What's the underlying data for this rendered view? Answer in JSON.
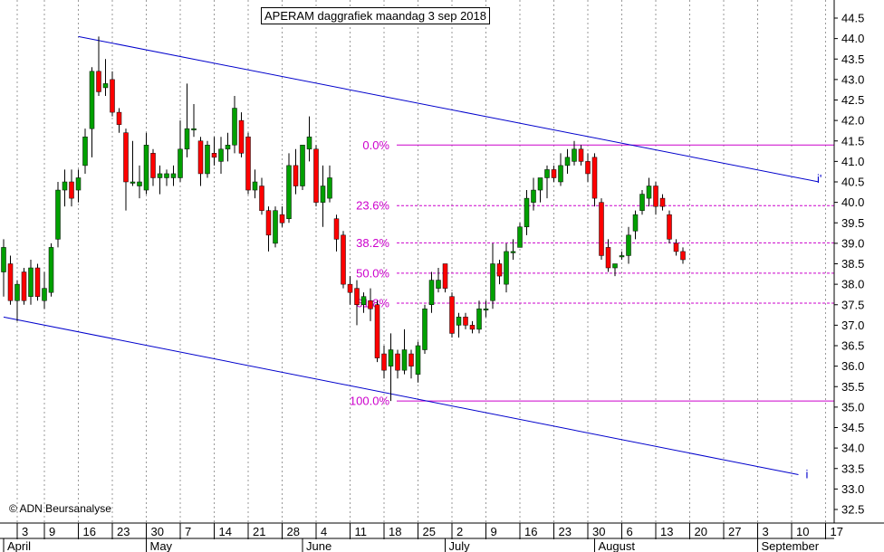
{
  "chart_data": {
    "type": "candlestick",
    "title": "APERAM daggrafiek maandag 3 sep 2018",
    "copyright": "© ADN Beursanalyse",
    "ylim": [
      32.25,
      44.75
    ],
    "y_ticks": [
      "32.5",
      "33.0",
      "33.5",
      "34.0",
      "34.5",
      "35.0",
      "35.5",
      "36.0",
      "36.5",
      "37.0",
      "37.5",
      "38.0",
      "38.5",
      "39.0",
      "39.5",
      "40.0",
      "40.5",
      "41.0",
      "41.5",
      "42.0",
      "42.5",
      "43.0",
      "43.5",
      "44.0",
      "44.5"
    ],
    "x_ticks": [
      {
        "label": "3",
        "i": 2
      },
      {
        "label": "9",
        "i": 6
      },
      {
        "label": "16",
        "i": 11
      },
      {
        "label": "23",
        "i": 16
      },
      {
        "label": "30",
        "i": 21
      },
      {
        "label": "7",
        "i": 26
      },
      {
        "label": "14",
        "i": 31
      },
      {
        "label": "21",
        "i": 36
      },
      {
        "label": "28",
        "i": 41
      },
      {
        "label": "4",
        "i": 46
      },
      {
        "label": "11",
        "i": 51
      },
      {
        "label": "18",
        "i": 56
      },
      {
        "label": "25",
        "i": 61
      },
      {
        "label": "2",
        "i": 66
      },
      {
        "label": "9",
        "i": 71
      },
      {
        "label": "16",
        "i": 76
      },
      {
        "label": "23",
        "i": 81
      },
      {
        "label": "30",
        "i": 86
      },
      {
        "label": "6",
        "i": 91
      },
      {
        "label": "13",
        "i": 96
      },
      {
        "label": "20",
        "i": 101
      },
      {
        "label": "27",
        "i": 106
      },
      {
        "label": "3",
        "i": 111
      },
      {
        "label": "10",
        "i": 116
      },
      {
        "label": "17",
        "i": 121
      }
    ],
    "months": [
      {
        "label": "April",
        "i": 0
      },
      {
        "label": "May",
        "i": 21
      },
      {
        "label": "June",
        "i": 44
      },
      {
        "label": "July",
        "i": 65
      },
      {
        "label": "August",
        "i": 87
      },
      {
        "label": "September",
        "i": 111
      }
    ],
    "fibonacci": {
      "high": 41.4,
      "low": 35.15,
      "levels": [
        {
          "label": "0.0%",
          "value": 41.4
        },
        {
          "label": "23.6%",
          "value": 39.92
        },
        {
          "label": "38.2%",
          "value": 39.01
        },
        {
          "label": "50.0%",
          "value": 38.27
        },
        {
          "label": "61.8%",
          "value": 37.54
        },
        {
          "label": "100.0%",
          "value": 35.15
        }
      ]
    },
    "channel": {
      "upper": {
        "from": {
          "i": 11,
          "v": 44.05
        },
        "to": {
          "i": 120,
          "v": 40.5
        },
        "label": "i'"
      },
      "lower": {
        "from": {
          "i": 0,
          "v": 37.2
        },
        "to": {
          "i": 117,
          "v": 33.35
        },
        "label": "i"
      }
    },
    "candles": [
      {
        "o": 38.3,
        "h": 39.1,
        "l": 37.7,
        "c": 38.9
      },
      {
        "o": 38.5,
        "h": 38.7,
        "l": 37.5,
        "c": 37.6
      },
      {
        "o": 37.6,
        "h": 38.1,
        "l": 37.1,
        "c": 38.0
      },
      {
        "o": 38.3,
        "h": 38.4,
        "l": 37.5,
        "c": 37.6
      },
      {
        "o": 37.7,
        "h": 38.6,
        "l": 37.5,
        "c": 38.4
      },
      {
        "o": 38.4,
        "h": 38.5,
        "l": 37.6,
        "c": 37.7
      },
      {
        "o": 37.6,
        "h": 38.3,
        "l": 37.4,
        "c": 37.9
      },
      {
        "o": 37.8,
        "h": 39.0,
        "l": 37.7,
        "c": 38.9
      },
      {
        "o": 39.1,
        "h": 40.5,
        "l": 38.9,
        "c": 40.3
      },
      {
        "o": 40.3,
        "h": 40.8,
        "l": 39.9,
        "c": 40.5
      },
      {
        "o": 40.5,
        "h": 40.8,
        "l": 39.9,
        "c": 40.1
      },
      {
        "o": 40.3,
        "h": 40.8,
        "l": 40.0,
        "c": 40.6
      },
      {
        "o": 40.9,
        "h": 41.8,
        "l": 40.7,
        "c": 41.6
      },
      {
        "o": 41.8,
        "h": 43.3,
        "l": 41.1,
        "c": 43.2
      },
      {
        "o": 43.2,
        "h": 44.05,
        "l": 42.6,
        "c": 42.7
      },
      {
        "o": 42.8,
        "h": 43.5,
        "l": 42.6,
        "c": 42.9
      },
      {
        "o": 43.0,
        "h": 43.2,
        "l": 42.1,
        "c": 42.2
      },
      {
        "o": 42.2,
        "h": 42.3,
        "l": 41.7,
        "c": 41.9
      },
      {
        "o": 41.7,
        "h": 41.8,
        "l": 39.8,
        "c": 40.5
      },
      {
        "o": 40.5,
        "h": 41.5,
        "l": 40.4,
        "c": 40.5
      },
      {
        "o": 40.4,
        "h": 40.9,
        "l": 40.1,
        "c": 40.5
      },
      {
        "o": 40.3,
        "h": 41.7,
        "l": 40.2,
        "c": 41.4
      },
      {
        "o": 41.2,
        "h": 41.3,
        "l": 40.4,
        "c": 40.6
      },
      {
        "o": 40.6,
        "h": 40.9,
        "l": 40.2,
        "c": 40.7
      },
      {
        "o": 40.6,
        "h": 40.8,
        "l": 40.4,
        "c": 40.7
      },
      {
        "o": 40.6,
        "h": 40.9,
        "l": 40.4,
        "c": 40.7
      },
      {
        "o": 40.6,
        "h": 42.0,
        "l": 40.5,
        "c": 41.3
      },
      {
        "o": 41.3,
        "h": 42.9,
        "l": 41.1,
        "c": 41.8
      },
      {
        "o": 41.8,
        "h": 42.4,
        "l": 41.6,
        "c": 41.8
      },
      {
        "o": 41.5,
        "h": 41.6,
        "l": 40.4,
        "c": 40.7
      },
      {
        "o": 40.7,
        "h": 41.5,
        "l": 40.6,
        "c": 41.4
      },
      {
        "o": 41.2,
        "h": 41.6,
        "l": 40.9,
        "c": 41.1
      },
      {
        "o": 41.0,
        "h": 41.6,
        "l": 40.7,
        "c": 41.3
      },
      {
        "o": 41.3,
        "h": 41.7,
        "l": 41.0,
        "c": 41.4
      },
      {
        "o": 41.4,
        "h": 42.6,
        "l": 41.2,
        "c": 42.3
      },
      {
        "o": 42.0,
        "h": 42.2,
        "l": 41.1,
        "c": 41.2
      },
      {
        "o": 41.6,
        "h": 41.7,
        "l": 40.2,
        "c": 40.3
      },
      {
        "o": 40.3,
        "h": 40.8,
        "l": 40.1,
        "c": 40.5
      },
      {
        "o": 40.4,
        "h": 40.6,
        "l": 39.7,
        "c": 39.8
      },
      {
        "o": 39.8,
        "h": 39.9,
        "l": 38.8,
        "c": 39.2
      },
      {
        "o": 39.0,
        "h": 39.9,
        "l": 38.9,
        "c": 39.8
      },
      {
        "o": 39.7,
        "h": 39.9,
        "l": 39.4,
        "c": 39.5
      },
      {
        "o": 39.6,
        "h": 41.2,
        "l": 39.5,
        "c": 40.9
      },
      {
        "o": 40.9,
        "h": 41.3,
        "l": 40.2,
        "c": 40.4
      },
      {
        "o": 40.4,
        "h": 41.4,
        "l": 40.3,
        "c": 41.4
      },
      {
        "o": 41.3,
        "h": 42.1,
        "l": 41.0,
        "c": 41.6
      },
      {
        "o": 41.3,
        "h": 41.4,
        "l": 39.9,
        "c": 40.0
      },
      {
        "o": 40.0,
        "h": 40.9,
        "l": 39.4,
        "c": 40.4
      },
      {
        "o": 40.1,
        "h": 40.9,
        "l": 40.0,
        "c": 40.6
      },
      {
        "o": 39.6,
        "h": 39.7,
        "l": 38.8,
        "c": 39.1
      },
      {
        "o": 39.2,
        "h": 39.3,
        "l": 37.9,
        "c": 38.0
      },
      {
        "o": 38.0,
        "h": 38.2,
        "l": 37.5,
        "c": 37.8
      },
      {
        "o": 37.9,
        "h": 38.1,
        "l": 37.0,
        "c": 37.5
      },
      {
        "o": 37.5,
        "h": 37.8,
        "l": 37.3,
        "c": 37.7
      },
      {
        "o": 37.6,
        "h": 37.9,
        "l": 37.1,
        "c": 37.4
      },
      {
        "o": 37.5,
        "h": 37.6,
        "l": 36.1,
        "c": 36.2
      },
      {
        "o": 36.3,
        "h": 36.5,
        "l": 35.7,
        "c": 35.9
      },
      {
        "o": 36.0,
        "h": 36.8,
        "l": 35.15,
        "c": 36.4
      },
      {
        "o": 36.3,
        "h": 36.4,
        "l": 35.7,
        "c": 35.9
      },
      {
        "o": 35.9,
        "h": 36.9,
        "l": 35.8,
        "c": 36.4
      },
      {
        "o": 36.3,
        "h": 36.4,
        "l": 35.7,
        "c": 36.0
      },
      {
        "o": 35.8,
        "h": 36.6,
        "l": 35.6,
        "c": 36.5
      },
      {
        "o": 36.4,
        "h": 37.5,
        "l": 36.3,
        "c": 37.4
      },
      {
        "o": 37.5,
        "h": 38.3,
        "l": 37.3,
        "c": 38.1
      },
      {
        "o": 37.9,
        "h": 38.4,
        "l": 37.8,
        "c": 38.1
      },
      {
        "o": 38.5,
        "h": 38.5,
        "l": 37.8,
        "c": 37.9
      },
      {
        "o": 37.7,
        "h": 37.8,
        "l": 36.7,
        "c": 36.8
      },
      {
        "o": 37.0,
        "h": 37.3,
        "l": 36.7,
        "c": 37.2
      },
      {
        "o": 37.2,
        "h": 37.3,
        "l": 36.9,
        "c": 37.0
      },
      {
        "o": 37.0,
        "h": 37.1,
        "l": 36.8,
        "c": 36.9
      },
      {
        "o": 36.9,
        "h": 37.6,
        "l": 36.8,
        "c": 37.4
      },
      {
        "o": 37.4,
        "h": 37.6,
        "l": 37.2,
        "c": 37.4
      },
      {
        "o": 37.6,
        "h": 39.0,
        "l": 37.4,
        "c": 38.5
      },
      {
        "o": 38.5,
        "h": 38.6,
        "l": 38.0,
        "c": 38.2
      },
      {
        "o": 38.0,
        "h": 39.0,
        "l": 37.8,
        "c": 38.8
      },
      {
        "o": 38.8,
        "h": 39.1,
        "l": 38.6,
        "c": 38.8
      },
      {
        "o": 38.9,
        "h": 39.5,
        "l": 38.9,
        "c": 39.4
      },
      {
        "o": 39.4,
        "h": 40.3,
        "l": 39.2,
        "c": 40.1
      },
      {
        "o": 40.0,
        "h": 40.6,
        "l": 39.8,
        "c": 40.3
      },
      {
        "o": 40.3,
        "h": 40.6,
        "l": 40.0,
        "c": 40.6
      },
      {
        "o": 40.6,
        "h": 40.9,
        "l": 40.1,
        "c": 40.8
      },
      {
        "o": 40.8,
        "h": 40.9,
        "l": 40.5,
        "c": 40.6
      },
      {
        "o": 40.5,
        "h": 41.2,
        "l": 40.4,
        "c": 40.9
      },
      {
        "o": 40.9,
        "h": 41.3,
        "l": 40.7,
        "c": 41.1
      },
      {
        "o": 41.0,
        "h": 41.5,
        "l": 40.9,
        "c": 41.3
      },
      {
        "o": 41.3,
        "h": 41.4,
        "l": 40.9,
        "c": 41.0
      },
      {
        "o": 41.0,
        "h": 41.2,
        "l": 40.5,
        "c": 40.7
      },
      {
        "o": 41.1,
        "h": 41.2,
        "l": 39.9,
        "c": 40.1
      },
      {
        "o": 40.0,
        "h": 40.1,
        "l": 38.6,
        "c": 38.7
      },
      {
        "o": 38.9,
        "h": 39.1,
        "l": 38.3,
        "c": 38.4
      },
      {
        "o": 38.4,
        "h": 38.5,
        "l": 38.2,
        "c": 38.5
      },
      {
        "o": 38.7,
        "h": 38.8,
        "l": 38.6,
        "c": 38.7
      },
      {
        "o": 38.7,
        "h": 39.4,
        "l": 38.5,
        "c": 39.2
      },
      {
        "o": 39.3,
        "h": 39.8,
        "l": 39.1,
        "c": 39.7
      },
      {
        "o": 39.8,
        "h": 40.3,
        "l": 39.7,
        "c": 40.2
      },
      {
        "o": 40.1,
        "h": 40.6,
        "l": 39.9,
        "c": 40.4
      },
      {
        "o": 40.4,
        "h": 40.5,
        "l": 39.7,
        "c": 39.9
      },
      {
        "o": 40.1,
        "h": 40.2,
        "l": 39.8,
        "c": 39.9
      },
      {
        "o": 39.7,
        "h": 39.8,
        "l": 39.0,
        "c": 39.1
      },
      {
        "o": 39.0,
        "h": 39.1,
        "l": 38.7,
        "c": 38.8
      },
      {
        "o": 38.8,
        "h": 38.9,
        "l": 38.5,
        "c": 38.6
      }
    ]
  },
  "colors": {
    "up": "#00a000",
    "down": "#ff0000",
    "wick": "#000000",
    "channel": "#0000cc",
    "fib": "#cc00cc",
    "grid": "#999999"
  }
}
